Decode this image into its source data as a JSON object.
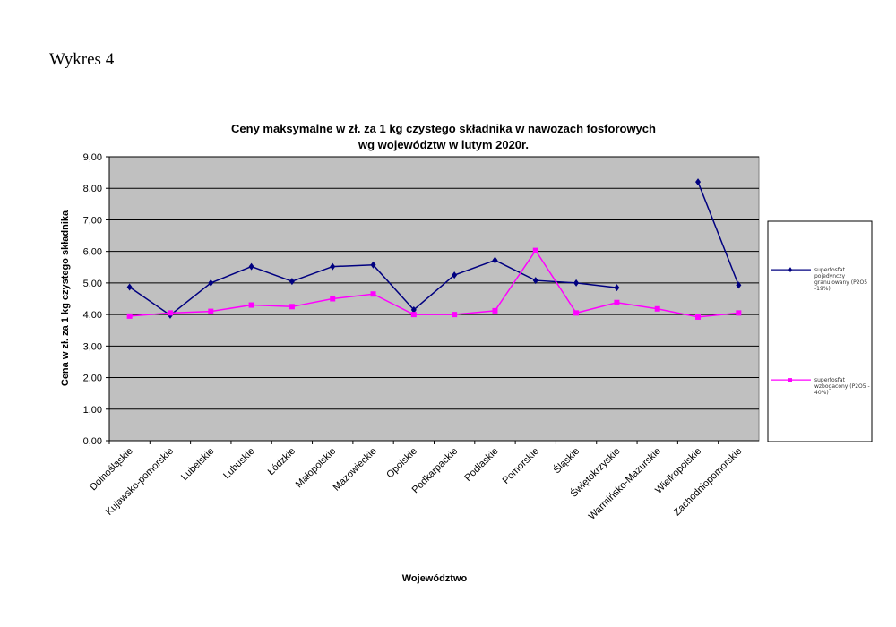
{
  "header": {
    "title": "Wykres 4"
  },
  "chart_data": {
    "type": "line",
    "title": "Ceny maksymalne w zł. za 1 kg czystego składnika w nawozach fosforowych",
    "subtitle": "wg województw w lutym 2020r.",
    "x_label": "Województwo",
    "y_label": "Cena w zł. za 1 kg czystego składnika",
    "categories": [
      "Dolnośląskie",
      "Kujawsko-pomorskie",
      "Lubelskie",
      "Lubuskie",
      "Łódzkie",
      "Małopolskie",
      "Mazowieckie",
      "Opolskie",
      "Podkarpackie",
      "Podlaskie",
      "Pomorskie",
      "Śląskie",
      "Świętokrzyskie",
      "Warmińsko-Mazurskie",
      "Wielkopolskie",
      "Zachodniopomorskie"
    ],
    "series": [
      {
        "name": "superfosfat pojedynczy granulowany (P2O5 -19%)",
        "color": "#000080",
        "marker": "diamond",
        "values": [
          4.87,
          3.98,
          5.0,
          5.52,
          5.05,
          5.52,
          5.57,
          4.15,
          5.25,
          5.72,
          5.08,
          5.0,
          4.85,
          null,
          8.2,
          4.93
        ]
      },
      {
        "name": "superfosfat wzbogacony (P2O5 - 40%)",
        "color": "#ff00ff",
        "marker": "square",
        "values": [
          3.95,
          4.05,
          4.1,
          4.3,
          4.25,
          4.5,
          4.65,
          4.0,
          4.0,
          4.12,
          6.03,
          4.05,
          4.38,
          4.18,
          3.92,
          4.05
        ]
      }
    ],
    "ylim": [
      0,
      9
    ],
    "yticks": [
      {
        "value": 0,
        "label": "0,00"
      },
      {
        "value": 1,
        "label": "1,00"
      },
      {
        "value": 2,
        "label": "2,00"
      },
      {
        "value": 3,
        "label": "3,00"
      },
      {
        "value": 4,
        "label": "4,00"
      },
      {
        "value": 5,
        "label": "5,00"
      },
      {
        "value": 6,
        "label": "6,00"
      },
      {
        "value": 7,
        "label": "7,00"
      },
      {
        "value": 8,
        "label": "8,00"
      },
      {
        "value": 9,
        "label": "9,00"
      }
    ],
    "grid": true,
    "legend": "right"
  }
}
